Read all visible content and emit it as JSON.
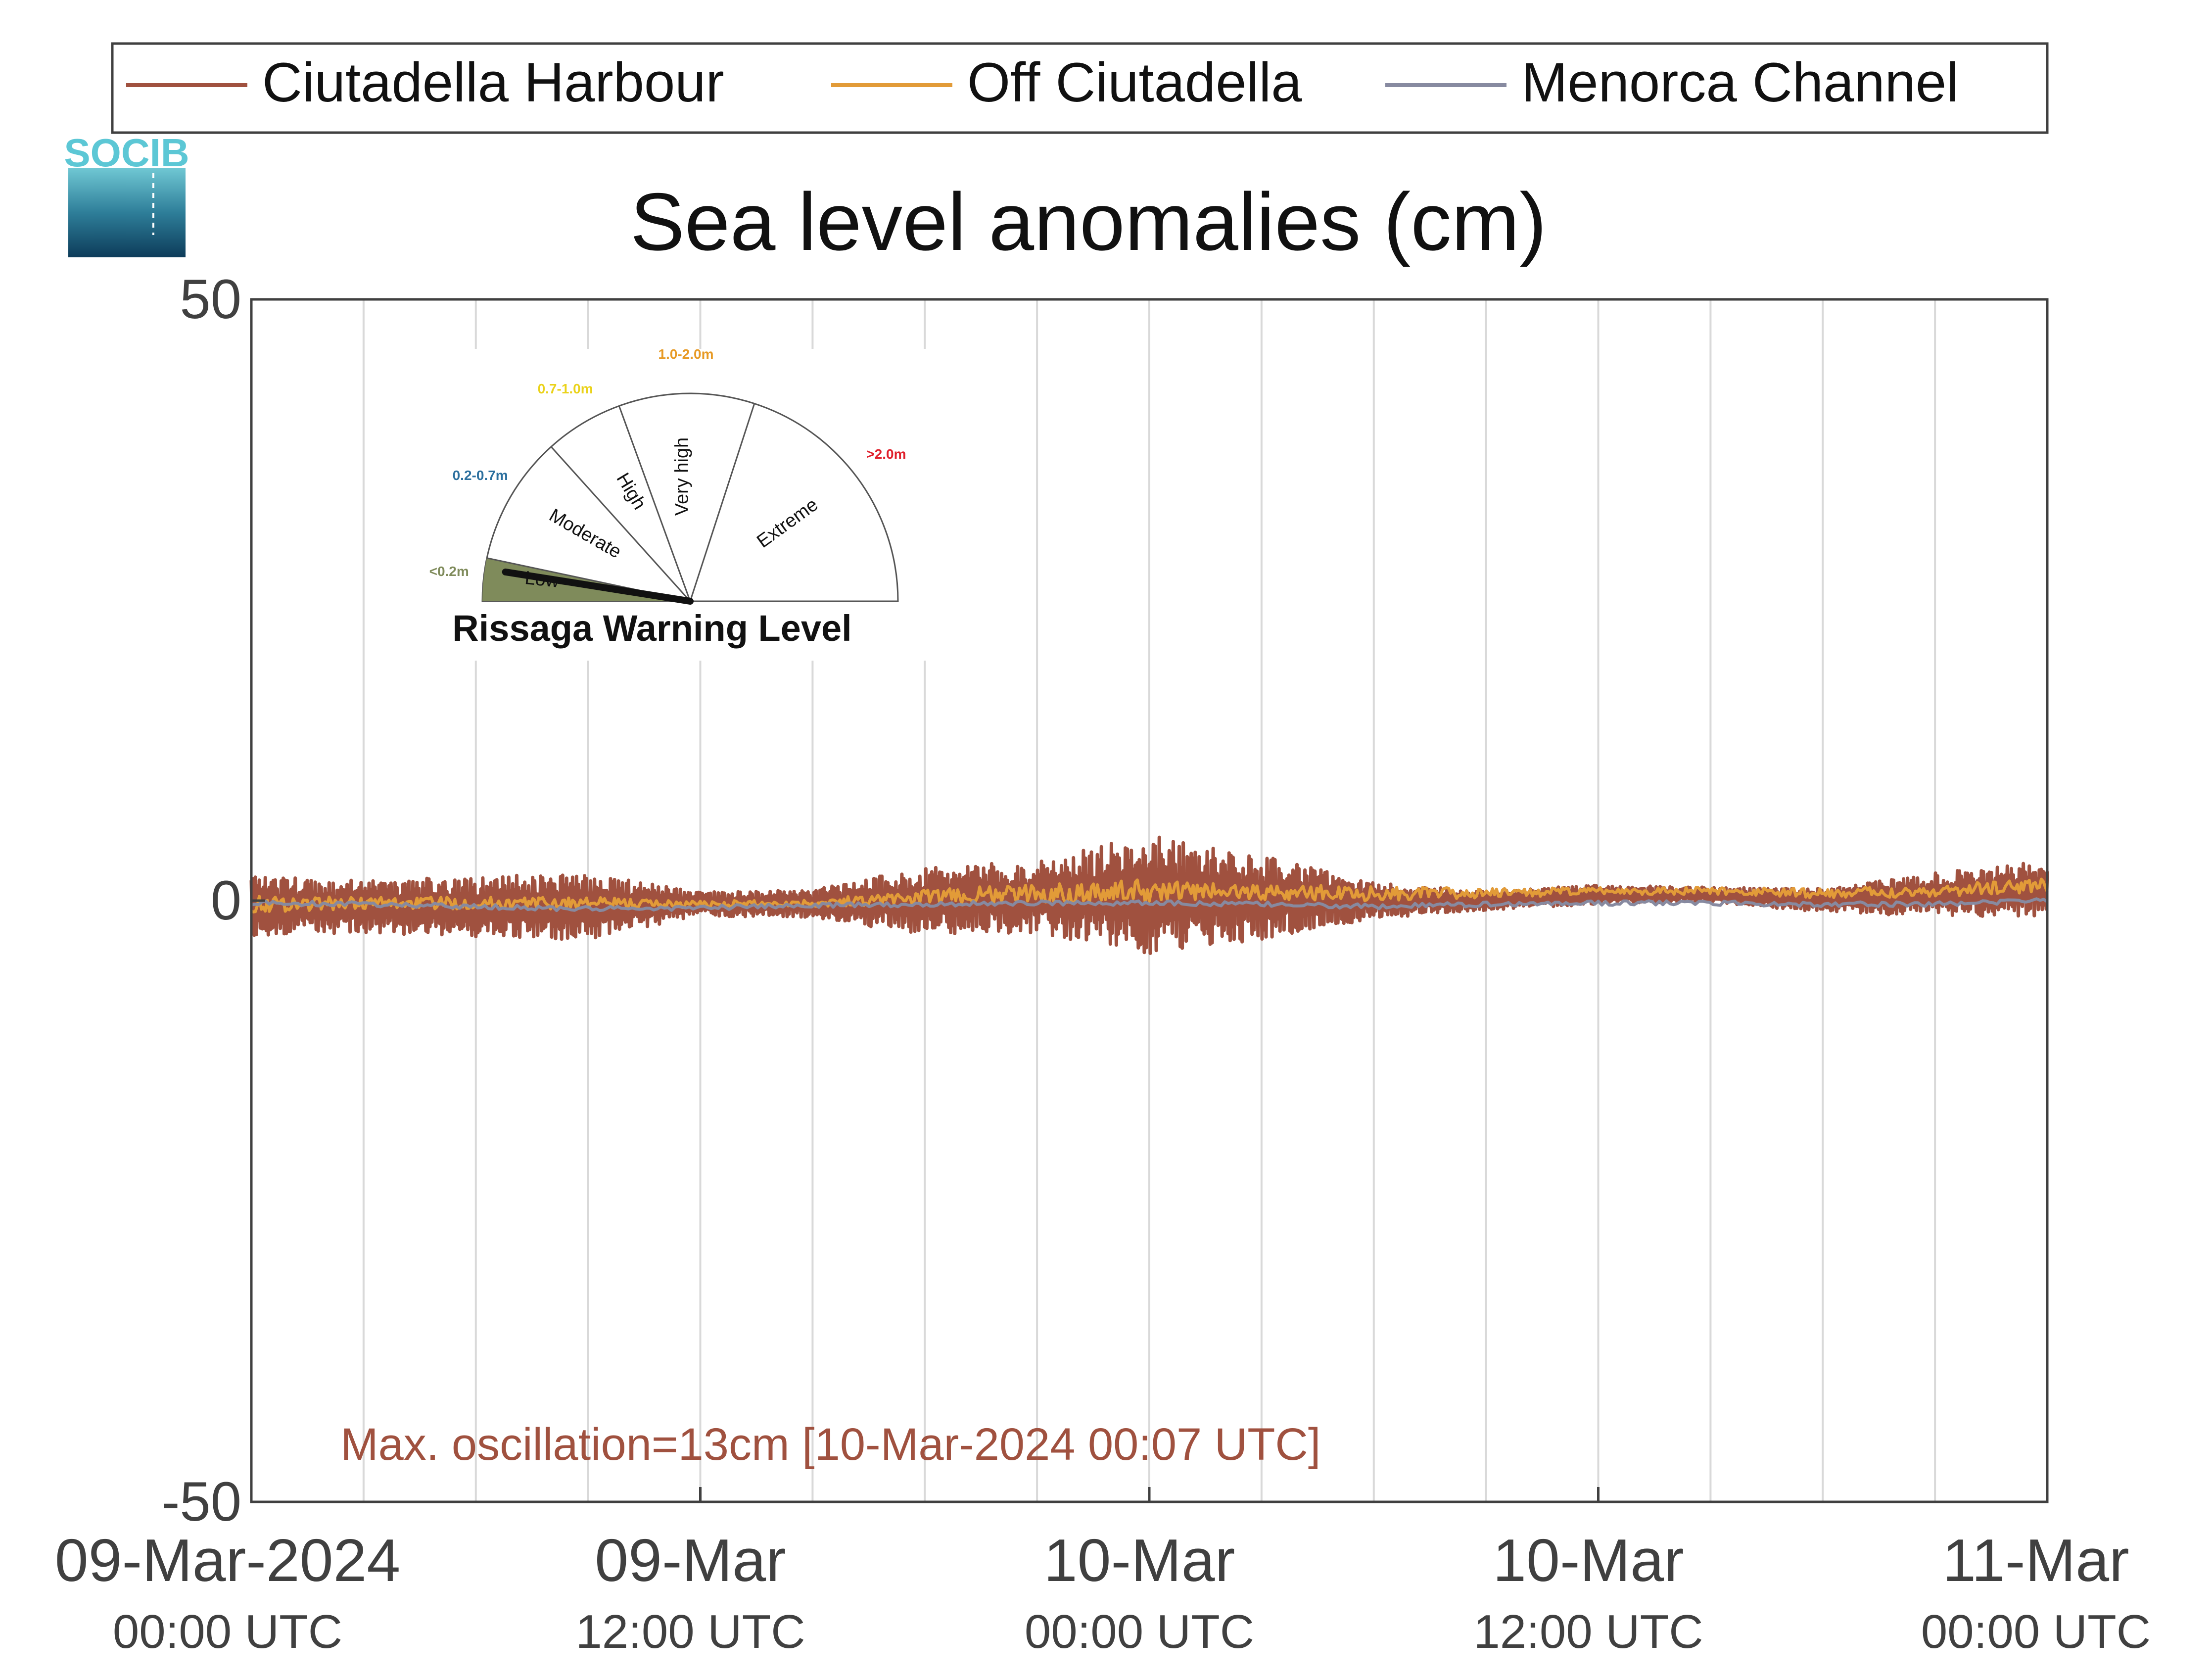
{
  "colors": {
    "ciutadella_harbour": "#A0513F",
    "off_ciutadella": "#E29B38",
    "menorca_channel": "#878AA0",
    "axis": "#404040",
    "grid": "#D9D9D9",
    "socib_text": "#5CC7D5",
    "gauge_low_fill": "#7F8B5B",
    "gauge_needle": "#111111",
    "band_low": "#7F8B5B",
    "band_moderate": "#2B6F9E",
    "band_high": "#EAD21A",
    "band_very_high": "#E79A25",
    "band_extreme": "#E01F2B"
  },
  "logo": {
    "text": "SOCIB"
  },
  "chart_data": {
    "type": "line",
    "title": "Sea level anomalies (cm)",
    "ylabel": "",
    "xlabel": "",
    "ylim": [
      -50,
      50
    ],
    "yticks": [
      {
        "value": 50,
        "label": "50"
      },
      {
        "value": 0,
        "label": "0"
      },
      {
        "value": -50,
        "label": "-50"
      }
    ],
    "x_unit": "hours from 09-Mar-2024 00:00 UTC",
    "xlim": [
      0,
      48
    ],
    "xticks": [
      {
        "value": 0,
        "line1": "09-Mar-2024",
        "line2": "00:00 UTC"
      },
      {
        "value": 12,
        "line1": "09-Mar",
        "line2": "12:00 UTC"
      },
      {
        "value": 24,
        "line1": "10-Mar",
        "line2": "00:00 UTC"
      },
      {
        "value": 36,
        "line1": "10-Mar",
        "line2": "12:00 UTC"
      },
      {
        "value": 48,
        "line1": "11-Mar",
        "line2": "00:00 UTC"
      }
    ],
    "gridlines_x": [
      0,
      3,
      6,
      9,
      12,
      15,
      18,
      21,
      24,
      27,
      30,
      33,
      36,
      39,
      42,
      45,
      48
    ],
    "grid": true,
    "legend_placement": "top",
    "series": [
      {
        "name": "Ciutadella Harbour",
        "color_key": "ciutadella_harbour",
        "mean_hours": [
          0,
          3,
          6,
          9,
          12,
          15,
          18,
          21,
          24,
          27,
          30,
          33,
          36,
          39,
          42,
          45,
          48
        ],
        "mean_values": [
          -0.5,
          -0.5,
          -0.5,
          -0.5,
          -0.3,
          -0.3,
          0,
          0.3,
          0.5,
          0.3,
          0,
          0,
          0.5,
          0.5,
          0,
          0.5,
          1.0
        ],
        "envelope_values": [
          2.5,
          2.2,
          2.5,
          2.8,
          1.0,
          1.2,
          2.8,
          3.0,
          5.0,
          3.5,
          1.5,
          0.8,
          0.8,
          0.6,
          1.0,
          1.8,
          2.3
        ],
        "max": 7.0,
        "min": -7.0
      },
      {
        "name": "Off Ciutadella",
        "color_key": "off_ciutadella",
        "mean_hours": [
          0,
          3,
          6,
          9,
          12,
          15,
          18,
          21,
          24,
          27,
          30,
          33,
          36,
          39,
          42,
          45,
          48
        ],
        "mean_values": [
          -0.3,
          -0.2,
          -0.2,
          -0.2,
          -0.3,
          -0.2,
          0.3,
          0.6,
          0.8,
          0.7,
          0.6,
          0.6,
          0.8,
          0.8,
          0.6,
          0.8,
          1.3
        ],
        "envelope_values": [
          0.7,
          0.5,
          0.5,
          0.5,
          0.3,
          0.3,
          0.6,
          0.8,
          1.0,
          0.8,
          0.6,
          0.4,
          0.3,
          0.3,
          0.4,
          0.5,
          0.6
        ]
      },
      {
        "name": "Menorca Channel",
        "color_key": "menorca_channel",
        "mean_hours": [
          0,
          3,
          6,
          9,
          12,
          15,
          18,
          21,
          24,
          27,
          30,
          33,
          36,
          39,
          42,
          45,
          48
        ],
        "mean_values": [
          -0.2,
          -0.3,
          -0.5,
          -0.7,
          -0.6,
          -0.4,
          -0.3,
          -0.2,
          -0.2,
          -0.3,
          -0.5,
          -0.3,
          -0.2,
          -0.2,
          -0.3,
          -0.3,
          0.0
        ],
        "envelope_values": [
          0.2,
          0.2,
          0.2,
          0.2,
          0.2,
          0.2,
          0.2,
          0.2,
          0.2,
          0.2,
          0.2,
          0.2,
          0.2,
          0.2,
          0.2,
          0.2,
          0.2
        ]
      }
    ],
    "annotation": "Max. oscillation=13cm [10-Mar-2024 00:07 UTC]"
  },
  "gauge": {
    "title": "Rissaga Warning Level",
    "sectors": [
      {
        "name": "Low",
        "range": "<0.2m",
        "color_key": "band_low"
      },
      {
        "name": "Moderate",
        "range": "0.2-0.7m",
        "color_key": "band_moderate"
      },
      {
        "name": "High",
        "range": "0.7-1.0m",
        "color_key": "band_high"
      },
      {
        "name": "Very high",
        "range": "1.0-2.0m",
        "color_key": "band_very_high"
      },
      {
        "name": "Extreme",
        "range": ">2.0m",
        "color_key": "band_extreme"
      }
    ],
    "active_level": "Low"
  }
}
